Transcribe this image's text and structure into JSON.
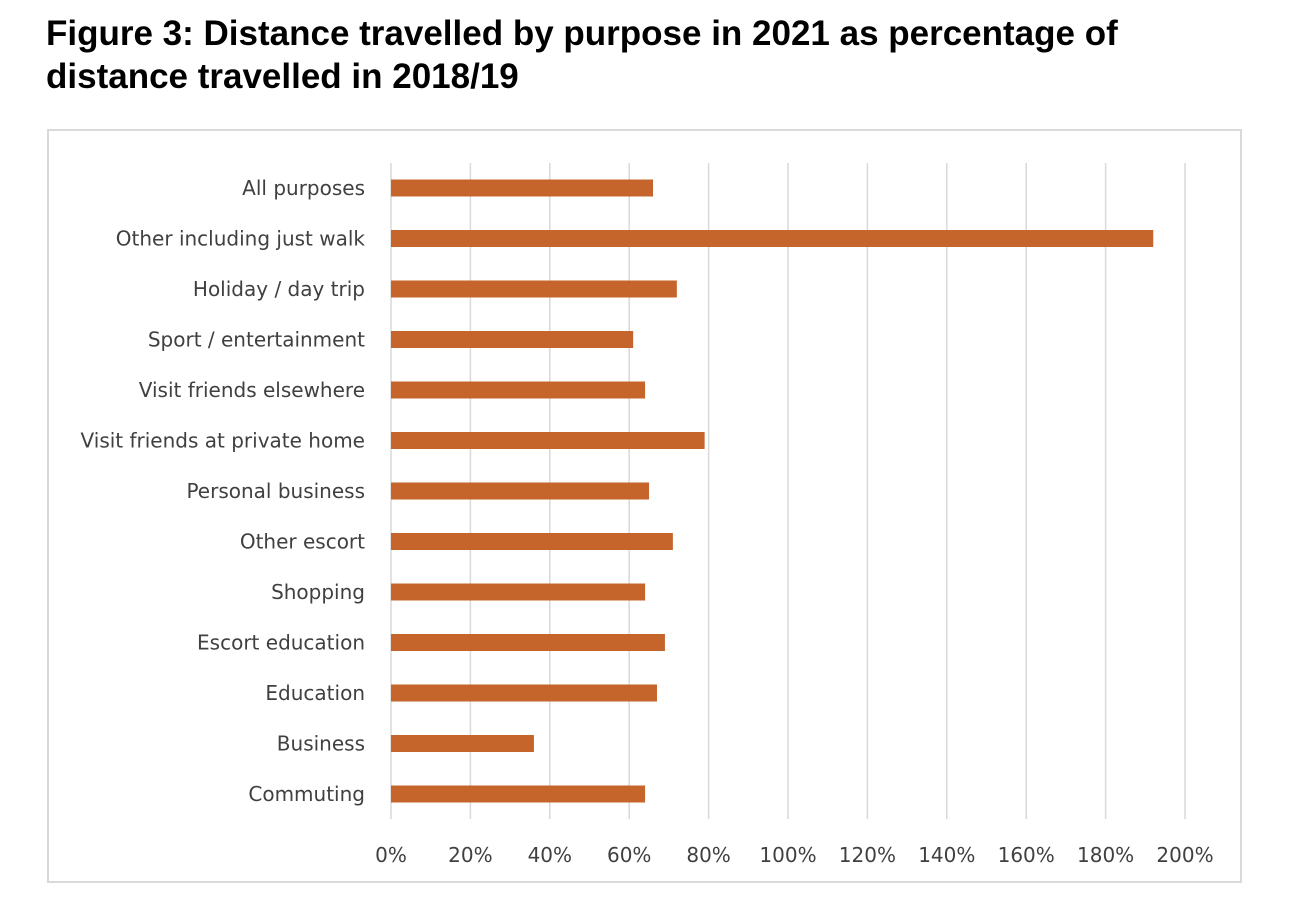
{
  "title": "Figure 3: Distance travelled by purpose in 2021 as percentage of distance travelled in 2018/19",
  "colors": {
    "bar": "#C5652B",
    "grid": "#d9d9d9",
    "text": "#404040"
  },
  "chart_data": {
    "type": "bar",
    "orientation": "horizontal",
    "title": "Figure 3: Distance travelled by purpose in 2021 as percentage of distance travelled in 2018/19",
    "xlabel": "",
    "ylabel": "",
    "xlim": [
      0,
      200
    ],
    "x_ticks": [
      0,
      20,
      40,
      60,
      80,
      100,
      120,
      140,
      160,
      180,
      200
    ],
    "x_tick_labels": [
      "0%",
      "20%",
      "40%",
      "60%",
      "80%",
      "100%",
      "120%",
      "140%",
      "160%",
      "180%",
      "200%"
    ],
    "grid": true,
    "legend": "none",
    "categories": [
      "All purposes",
      "Other including just walk",
      "Holiday / day trip",
      "Sport / entertainment",
      "Visit friends elsewhere",
      "Visit friends at private home",
      "Personal business",
      "Other escort",
      "Shopping",
      "Escort education",
      "Education",
      "Business",
      "Commuting"
    ],
    "values": [
      66,
      192,
      72,
      61,
      64,
      79,
      65,
      71,
      64,
      69,
      67,
      36,
      64
    ]
  }
}
